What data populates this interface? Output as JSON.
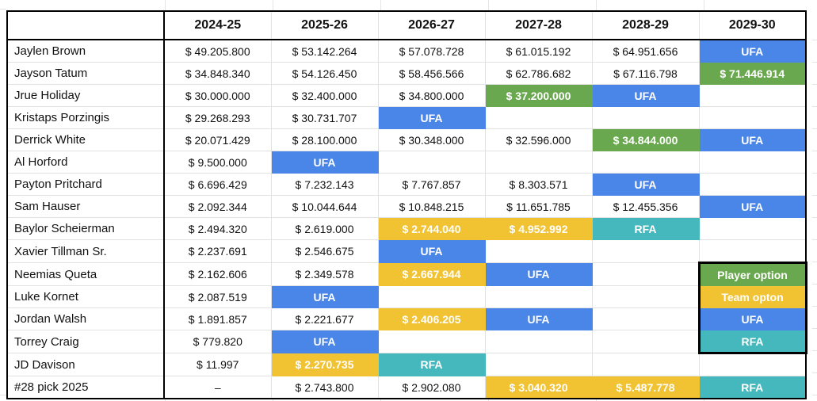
{
  "colors": {
    "blue": "#4a86e8",
    "green": "#6aa84f",
    "yellow": "#f1c232",
    "teal": "#45b8bd",
    "grid": "#e4e4e4",
    "table_border": "#000000"
  },
  "legend": {
    "items": [
      {
        "label": "Player option",
        "color": "green"
      },
      {
        "label": "Team opton",
        "color": "yellow"
      },
      {
        "label": "UFA",
        "color": "blue"
      },
      {
        "label": "RFA",
        "color": "teal"
      }
    ]
  },
  "table": {
    "columns": [
      "",
      "2024-25",
      "2025-26",
      "2026-27",
      "2027-28",
      "2028-29",
      "2029-30"
    ],
    "rows": [
      {
        "name": "Jaylen Brown",
        "cells": [
          {
            "v": "$ 49.205.800",
            "t": "plain"
          },
          {
            "v": "$ 53.142.264",
            "t": "plain"
          },
          {
            "v": "$ 57.078.728",
            "t": "plain"
          },
          {
            "v": "$ 61.015.192",
            "t": "plain"
          },
          {
            "v": "$ 64.951.656",
            "t": "plain"
          },
          {
            "v": "UFA",
            "t": "blue"
          }
        ]
      },
      {
        "name": "Jayson Tatum",
        "cells": [
          {
            "v": "$ 34.848.340",
            "t": "plain"
          },
          {
            "v": "$ 54.126.450",
            "t": "plain"
          },
          {
            "v": "$ 58.456.566",
            "t": "plain"
          },
          {
            "v": "$ 62.786.682",
            "t": "plain"
          },
          {
            "v": "$ 67.116.798",
            "t": "plain"
          },
          {
            "v": "$ 71.446.914",
            "t": "green"
          }
        ]
      },
      {
        "name": "Jrue Holiday",
        "cells": [
          {
            "v": "$ 30.000.000",
            "t": "plain"
          },
          {
            "v": "$ 32.400.000",
            "t": "plain"
          },
          {
            "v": "$ 34.800.000",
            "t": "plain"
          },
          {
            "v": "$ 37.200.000",
            "t": "green"
          },
          {
            "v": "UFA",
            "t": "blue"
          },
          {
            "v": "",
            "t": "empty"
          }
        ]
      },
      {
        "name": "Kristaps Porzingis",
        "cells": [
          {
            "v": "$ 29.268.293",
            "t": "plain"
          },
          {
            "v": "$ 30.731.707",
            "t": "plain"
          },
          {
            "v": "UFA",
            "t": "blue"
          },
          {
            "v": "",
            "t": "empty"
          },
          {
            "v": "",
            "t": "empty"
          },
          {
            "v": "",
            "t": "empty"
          }
        ]
      },
      {
        "name": "Derrick White",
        "cells": [
          {
            "v": "$ 20.071.429",
            "t": "plain"
          },
          {
            "v": "$ 28.100.000",
            "t": "plain"
          },
          {
            "v": "$ 30.348.000",
            "t": "plain"
          },
          {
            "v": "$ 32.596.000",
            "t": "plain"
          },
          {
            "v": "$ 34.844.000",
            "t": "green"
          },
          {
            "v": "UFA",
            "t": "blue"
          }
        ]
      },
      {
        "name": "Al Horford",
        "cells": [
          {
            "v": "$ 9.500.000",
            "t": "plain"
          },
          {
            "v": "UFA",
            "t": "blue"
          },
          {
            "v": "",
            "t": "empty"
          },
          {
            "v": "",
            "t": "empty"
          },
          {
            "v": "",
            "t": "empty"
          },
          {
            "v": "",
            "t": "empty"
          }
        ]
      },
      {
        "name": "Payton Pritchard",
        "cells": [
          {
            "v": "$ 6.696.429",
            "t": "plain"
          },
          {
            "v": "$ 7.232.143",
            "t": "plain"
          },
          {
            "v": "$ 7.767.857",
            "t": "plain"
          },
          {
            "v": "$ 8.303.571",
            "t": "plain"
          },
          {
            "v": "UFA",
            "t": "blue"
          },
          {
            "v": "",
            "t": "empty"
          }
        ]
      },
      {
        "name": "Sam Hauser",
        "cells": [
          {
            "v": "$ 2.092.344",
            "t": "plain"
          },
          {
            "v": "$ 10.044.644",
            "t": "plain"
          },
          {
            "v": "$ 10.848.215",
            "t": "plain"
          },
          {
            "v": "$ 11.651.785",
            "t": "plain"
          },
          {
            "v": "$ 12.455.356",
            "t": "plain"
          },
          {
            "v": "UFA",
            "t": "blue"
          }
        ]
      },
      {
        "name": "Baylor Scheierman",
        "cells": [
          {
            "v": "$ 2.494.320",
            "t": "plain"
          },
          {
            "v": "$ 2.619.000",
            "t": "plain"
          },
          {
            "v": "$ 2.744.040",
            "t": "yellow"
          },
          {
            "v": "$ 4.952.992",
            "t": "yellow"
          },
          {
            "v": "RFA",
            "t": "teal"
          },
          {
            "v": "",
            "t": "empty"
          }
        ]
      },
      {
        "name": "Xavier Tillman Sr.",
        "cells": [
          {
            "v": "$ 2.237.691",
            "t": "plain"
          },
          {
            "v": "$ 2.546.675",
            "t": "plain"
          },
          {
            "v": "UFA",
            "t": "blue"
          },
          {
            "v": "",
            "t": "empty"
          },
          {
            "v": "",
            "t": "empty"
          },
          {
            "v": "",
            "t": "empty"
          }
        ]
      },
      {
        "name": "Neemias Queta",
        "cells": [
          {
            "v": "$ 2.162.606",
            "t": "plain"
          },
          {
            "v": "$ 2.349.578",
            "t": "plain"
          },
          {
            "v": "$ 2.667.944",
            "t": "yellow"
          },
          {
            "v": "UFA",
            "t": "blue"
          },
          {
            "v": "",
            "t": "empty"
          },
          {
            "v": "Player option",
            "t": "green",
            "legend": true
          }
        ]
      },
      {
        "name": "Luke Kornet",
        "cells": [
          {
            "v": "$ 2.087.519",
            "t": "plain"
          },
          {
            "v": "UFA",
            "t": "blue"
          },
          {
            "v": "",
            "t": "empty"
          },
          {
            "v": "",
            "t": "empty"
          },
          {
            "v": "",
            "t": "empty"
          },
          {
            "v": "Team opton",
            "t": "yellow",
            "legend": true
          }
        ]
      },
      {
        "name": "Jordan Walsh",
        "cells": [
          {
            "v": "$ 1.891.857",
            "t": "plain"
          },
          {
            "v": "$ 2.221.677",
            "t": "plain"
          },
          {
            "v": "$ 2.406.205",
            "t": "yellow"
          },
          {
            "v": "UFA",
            "t": "blue"
          },
          {
            "v": "",
            "t": "empty"
          },
          {
            "v": "UFA",
            "t": "blue",
            "legend": true
          }
        ]
      },
      {
        "name": "Torrey Craig",
        "cells": [
          {
            "v": "$ 779.820",
            "t": "plain"
          },
          {
            "v": "UFA",
            "t": "blue"
          },
          {
            "v": "",
            "t": "empty"
          },
          {
            "v": "",
            "t": "empty"
          },
          {
            "v": "",
            "t": "empty"
          },
          {
            "v": "RFA",
            "t": "teal",
            "legend": true
          }
        ]
      },
      {
        "name": "JD Davison",
        "cells": [
          {
            "v": "$ 11.997",
            "t": "plain"
          },
          {
            "v": "$ 2.270.735",
            "t": "yellow"
          },
          {
            "v": "RFA",
            "t": "teal"
          },
          {
            "v": "",
            "t": "empty"
          },
          {
            "v": "",
            "t": "empty"
          },
          {
            "v": "",
            "t": "empty"
          }
        ]
      },
      {
        "name": "#28 pick 2025",
        "cells": [
          {
            "v": "–",
            "t": "plain"
          },
          {
            "v": "$ 2.743.800",
            "t": "plain"
          },
          {
            "v": "$ 2.902.080",
            "t": "plain"
          },
          {
            "v": "$ 3.040.320",
            "t": "yellow"
          },
          {
            "v": "$ 5.487.778",
            "t": "yellow"
          },
          {
            "v": "RFA",
            "t": "teal"
          }
        ]
      }
    ]
  }
}
